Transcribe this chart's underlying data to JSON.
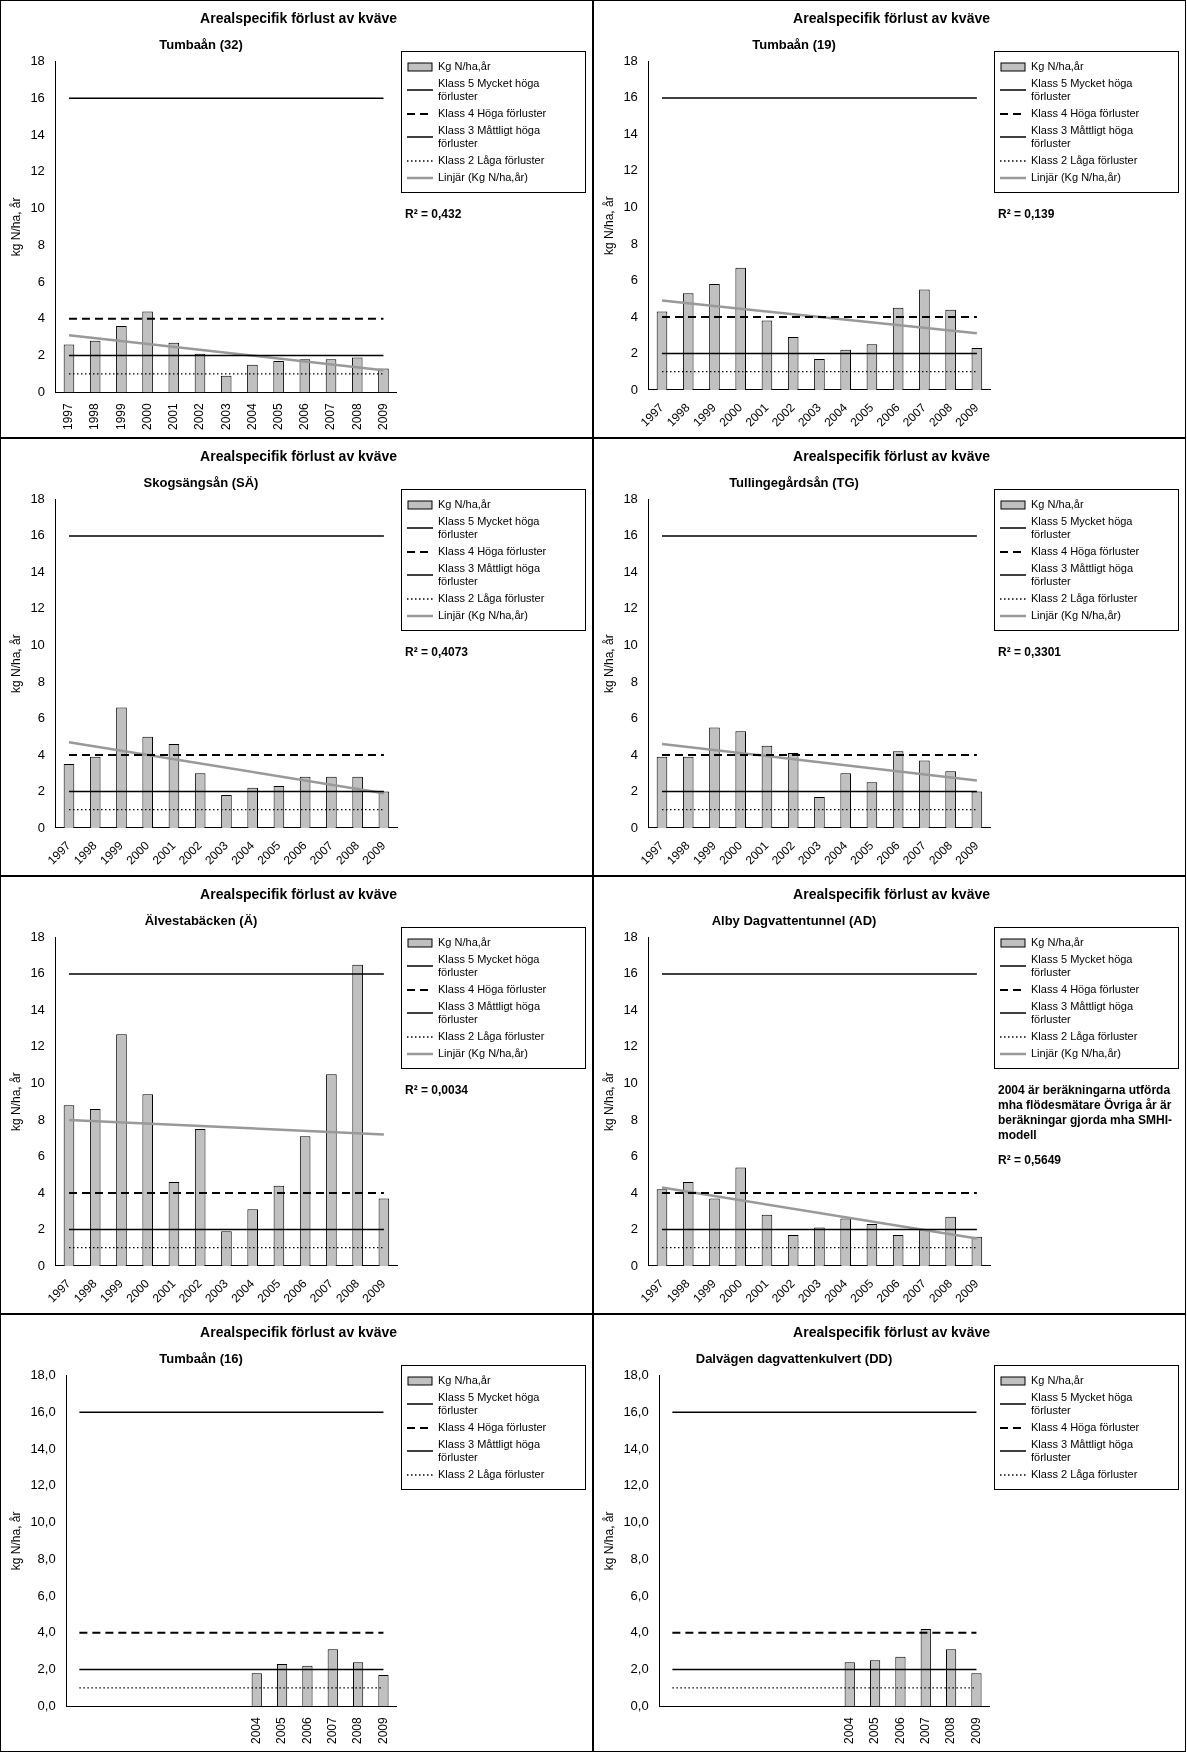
{
  "chart_data": [
    {
      "type": "bar",
      "title": "Arealspecifik förlust av kväve",
      "subtitle": "Tumbaån (32)",
      "ylabel": "kg N/ha, år",
      "categories": [
        "1997",
        "1998",
        "1999",
        "2000",
        "2001",
        "2002",
        "2003",
        "2004",
        "2005",
        "2006",
        "2007",
        "2008",
        "2009"
      ],
      "ylim": [
        0,
        18
      ],
      "yticks": [
        0,
        2,
        4,
        6,
        8,
        10,
        12,
        14,
        16,
        18
      ],
      "legend": "right",
      "marker": "none",
      "annotations": [
        "R² = 0,432"
      ],
      "series": [
        {
          "name": "Kg N/ha,år",
          "color": "#c0c0c0",
          "values": [
            2.6,
            2.8,
            3.6,
            4.4,
            2.7,
            2.1,
            0.9,
            1.5,
            1.7,
            1.8,
            1.8,
            1.9,
            1.3
          ]
        },
        {
          "name": "Klass 5 Mycket höga förluster",
          "type": "line",
          "color": "#000000",
          "line_style": "solid",
          "values": [
            16,
            16,
            16,
            16,
            16,
            16,
            16,
            16,
            16,
            16,
            16,
            16,
            16
          ]
        },
        {
          "name": "Klass 4 Höga förluster",
          "type": "line",
          "color": "#000000",
          "line_style": "dashed",
          "values": [
            4,
            4,
            4,
            4,
            4,
            4,
            4,
            4,
            4,
            4,
            4,
            4,
            4
          ]
        },
        {
          "name": "Klass 3 Måttligt höga förluster",
          "type": "line",
          "color": "#000000",
          "line_style": "solid",
          "values": [
            2,
            2,
            2,
            2,
            2,
            2,
            2,
            2,
            2,
            2,
            2,
            2,
            2
          ]
        },
        {
          "name": "Klass 2 Låga förluster",
          "type": "line",
          "color": "#000000",
          "line_style": "dotted",
          "values": [
            1,
            1,
            1,
            1,
            1,
            1,
            1,
            1,
            1,
            1,
            1,
            1,
            1
          ]
        },
        {
          "name": "Linjär (Kg N/ha,år)",
          "type": "line",
          "color": "#999999",
          "line_style": "solid",
          "values": [
            3.1,
            null,
            null,
            null,
            null,
            null,
            null,
            null,
            null,
            null,
            null,
            null,
            1.2
          ]
        }
      ]
    },
    {
      "type": "bar",
      "title": "Arealspecifik förlust av kväve",
      "subtitle": "Tumbaån (19)",
      "ylabel": "kg N/ha, år",
      "categories": [
        "1997",
        "1998",
        "1999",
        "2000",
        "2001",
        "2002",
        "2003",
        "2004",
        "2005",
        "2006",
        "2007",
        "2008",
        "2009"
      ],
      "ylim": [
        0,
        18
      ],
      "yticks": [
        0,
        2,
        4,
        6,
        8,
        10,
        12,
        14,
        16,
        18
      ],
      "legend": "right",
      "marker": "none",
      "annotations": [
        "R² = 0,139"
      ],
      "series": [
        {
          "name": "Kg N/ha,år",
          "color": "#c0c0c0",
          "values": [
            4.3,
            5.3,
            5.8,
            6.7,
            3.8,
            2.9,
            1.7,
            2.2,
            2.5,
            4.5,
            5.5,
            4.4,
            2.3
          ]
        },
        {
          "name": "Klass 5 Mycket höga förluster",
          "type": "line",
          "color": "#000000",
          "line_style": "solid",
          "values": [
            16,
            16,
            16,
            16,
            16,
            16,
            16,
            16,
            16,
            16,
            16,
            16,
            16
          ]
        },
        {
          "name": "Klass 4 Höga förluster",
          "type": "line",
          "color": "#000000",
          "line_style": "dashed",
          "values": [
            4,
            4,
            4,
            4,
            4,
            4,
            4,
            4,
            4,
            4,
            4,
            4,
            4
          ]
        },
        {
          "name": "Klass 3 Måttligt höga förluster",
          "type": "line",
          "color": "#000000",
          "line_style": "solid",
          "values": [
            2,
            2,
            2,
            2,
            2,
            2,
            2,
            2,
            2,
            2,
            2,
            2,
            2
          ]
        },
        {
          "name": "Klass 2 Låga förluster",
          "type": "line",
          "color": "#000000",
          "line_style": "dotted",
          "values": [
            1,
            1,
            1,
            1,
            1,
            1,
            1,
            1,
            1,
            1,
            1,
            1,
            1
          ]
        },
        {
          "name": "Linjär (Kg N/ha,år)",
          "type": "line",
          "color": "#999999",
          "line_style": "solid",
          "values": [
            4.9,
            null,
            null,
            null,
            null,
            null,
            null,
            null,
            null,
            null,
            null,
            null,
            3.1
          ]
        }
      ]
    },
    {
      "type": "bar",
      "title": "Arealspecifik förlust av kväve",
      "subtitle": "Skogsängsån (SÄ)",
      "ylabel": "kg N/ha, år",
      "categories": [
        "1997",
        "1998",
        "1999",
        "2000",
        "2001",
        "2002",
        "2003",
        "2004",
        "2005",
        "2006",
        "2007",
        "2008",
        "2009"
      ],
      "ylim": [
        0,
        18
      ],
      "yticks": [
        0,
        2,
        4,
        6,
        8,
        10,
        12,
        14,
        16,
        18
      ],
      "legend": "right",
      "marker": "none",
      "annotations": [
        "R² = 0,4073"
      ],
      "series": [
        {
          "name": "Kg N/ha,år",
          "color": "#c0c0c0",
          "values": [
            3.5,
            3.9,
            6.6,
            5.0,
            4.6,
            3.0,
            1.8,
            2.2,
            2.3,
            2.8,
            2.8,
            2.8,
            2.0
          ]
        },
        {
          "name": "Klass 5 Mycket höga förluster",
          "type": "line",
          "color": "#000000",
          "line_style": "solid",
          "values": [
            16,
            16,
            16,
            16,
            16,
            16,
            16,
            16,
            16,
            16,
            16,
            16,
            16
          ]
        },
        {
          "name": "Klass 4 Höga förluster",
          "type": "line",
          "color": "#000000",
          "line_style": "dashed",
          "values": [
            4,
            4,
            4,
            4,
            4,
            4,
            4,
            4,
            4,
            4,
            4,
            4,
            4
          ]
        },
        {
          "name": "Klass 3 Måttligt höga förluster",
          "type": "line",
          "color": "#000000",
          "line_style": "solid",
          "values": [
            2,
            2,
            2,
            2,
            2,
            2,
            2,
            2,
            2,
            2,
            2,
            2,
            2
          ]
        },
        {
          "name": "Klass 2 Låga förluster",
          "type": "line",
          "color": "#000000",
          "line_style": "dotted",
          "values": [
            1,
            1,
            1,
            1,
            1,
            1,
            1,
            1,
            1,
            1,
            1,
            1,
            1
          ]
        },
        {
          "name": "Linjär (Kg N/ha,år)",
          "type": "line",
          "color": "#999999",
          "line_style": "solid",
          "values": [
            4.7,
            null,
            null,
            null,
            null,
            null,
            null,
            null,
            null,
            null,
            null,
            null,
            1.9
          ]
        }
      ]
    },
    {
      "type": "bar",
      "title": "Arealspecifik förlust av kväve",
      "subtitle": "Tullingegårdsån (TG)",
      "ylabel": "kg N/ha, år",
      "categories": [
        "1997",
        "1998",
        "1999",
        "2000",
        "2001",
        "2002",
        "2003",
        "2004",
        "2005",
        "2006",
        "2007",
        "2008",
        "2009"
      ],
      "ylim": [
        0,
        18
      ],
      "yticks": [
        0,
        2,
        4,
        6,
        8,
        10,
        12,
        14,
        16,
        18
      ],
      "legend": "right",
      "marker": "none",
      "annotations": [
        "R² = 0,3301"
      ],
      "series": [
        {
          "name": "Kg N/ha,år",
          "color": "#c0c0c0",
          "values": [
            3.9,
            3.9,
            5.5,
            5.3,
            4.5,
            4.1,
            1.7,
            3.0,
            2.5,
            4.2,
            3.7,
            3.1,
            2.0
          ]
        },
        {
          "name": "Klass 5 Mycket höga förluster",
          "type": "line",
          "color": "#000000",
          "line_style": "solid",
          "values": [
            16,
            16,
            16,
            16,
            16,
            16,
            16,
            16,
            16,
            16,
            16,
            16,
            16
          ]
        },
        {
          "name": "Klass 4 Höga förluster",
          "type": "line",
          "color": "#000000",
          "line_style": "dashed",
          "values": [
            4,
            4,
            4,
            4,
            4,
            4,
            4,
            4,
            4,
            4,
            4,
            4,
            4
          ]
        },
        {
          "name": "Klass 3 Måttligt höga förluster",
          "type": "line",
          "color": "#000000",
          "line_style": "solid",
          "values": [
            2,
            2,
            2,
            2,
            2,
            2,
            2,
            2,
            2,
            2,
            2,
            2,
            2
          ]
        },
        {
          "name": "Klass 2 Låga förluster",
          "type": "line",
          "color": "#000000",
          "line_style": "dotted",
          "values": [
            1,
            1,
            1,
            1,
            1,
            1,
            1,
            1,
            1,
            1,
            1,
            1,
            1
          ]
        },
        {
          "name": "Linjär (Kg N/ha,år)",
          "type": "line",
          "color": "#999999",
          "line_style": "solid",
          "values": [
            4.6,
            null,
            null,
            null,
            null,
            null,
            null,
            null,
            null,
            null,
            null,
            null,
            2.6
          ]
        }
      ]
    },
    {
      "type": "bar",
      "title": "Arealspecifik förlust av kväve",
      "subtitle": "Älvestabäcken (Ä)",
      "ylabel": "kg N/ha, år",
      "categories": [
        "1997",
        "1998",
        "1999",
        "2000",
        "2001",
        "2002",
        "2003",
        "2004",
        "2005",
        "2006",
        "2007",
        "2008",
        "2009"
      ],
      "ylim": [
        0,
        18
      ],
      "yticks": [
        0,
        2,
        4,
        6,
        8,
        10,
        12,
        14,
        16,
        18
      ],
      "legend": "right",
      "marker": "none",
      "annotations": [
        "R² = 0,0034"
      ],
      "series": [
        {
          "name": "Kg N/ha,år",
          "color": "#c0c0c0",
          "values": [
            8.8,
            8.6,
            12.7,
            9.4,
            4.6,
            7.5,
            1.9,
            3.1,
            4.4,
            7.1,
            10.5,
            16.5,
            3.7
          ]
        },
        {
          "name": "Klass 5 Mycket höga förluster",
          "type": "line",
          "color": "#000000",
          "line_style": "solid",
          "values": [
            16,
            16,
            16,
            16,
            16,
            16,
            16,
            16,
            16,
            16,
            16,
            16,
            16
          ]
        },
        {
          "name": "Klass 4 Höga förluster",
          "type": "line",
          "color": "#000000",
          "line_style": "dashed",
          "values": [
            4,
            4,
            4,
            4,
            4,
            4,
            4,
            4,
            4,
            4,
            4,
            4,
            4
          ]
        },
        {
          "name": "Klass 3 Måttligt höga förluster",
          "type": "line",
          "color": "#000000",
          "line_style": "solid",
          "values": [
            2,
            2,
            2,
            2,
            2,
            2,
            2,
            2,
            2,
            2,
            2,
            2,
            2
          ]
        },
        {
          "name": "Klass 2 Låga förluster",
          "type": "line",
          "color": "#000000",
          "line_style": "dotted",
          "values": [
            1,
            1,
            1,
            1,
            1,
            1,
            1,
            1,
            1,
            1,
            1,
            1,
            1
          ]
        },
        {
          "name": "Linjär (Kg N/ha,år)",
          "type": "line",
          "color": "#999999",
          "line_style": "solid",
          "values": [
            8.0,
            null,
            null,
            null,
            null,
            null,
            null,
            null,
            null,
            null,
            null,
            null,
            7.2
          ]
        }
      ]
    },
    {
      "type": "bar",
      "title": "Arealspecifik förlust av kväve",
      "subtitle": "Alby Dagvattentunnel (AD)",
      "ylabel": "kg N/ha, år",
      "categories": [
        "1997",
        "1998",
        "1999",
        "2000",
        "2001",
        "2002",
        "2003",
        "2004",
        "2005",
        "2006",
        "2007",
        "2008",
        "2009"
      ],
      "ylim": [
        0,
        18
      ],
      "yticks": [
        0,
        2,
        4,
        6,
        8,
        10,
        12,
        14,
        16,
        18
      ],
      "legend": "right",
      "marker": "none",
      "annotations": [
        "2004 är beräkningarna utförda mha flödesmätare Övriga år är beräkningar gjorda mha SMHI-modell",
        "R² = 0,5649"
      ],
      "series": [
        {
          "name": "Kg N/ha,år",
          "color": "#c0c0c0",
          "values": [
            4.2,
            4.6,
            3.7,
            5.4,
            2.8,
            1.7,
            2.1,
            2.6,
            2.3,
            1.7,
            2.0,
            2.7,
            1.6
          ]
        },
        {
          "name": "Klass 5 Mycket höga förluster",
          "type": "line",
          "color": "#000000",
          "line_style": "solid",
          "values": [
            16,
            16,
            16,
            16,
            16,
            16,
            16,
            16,
            16,
            16,
            16,
            16,
            16
          ]
        },
        {
          "name": "Klass 4 Höga förluster",
          "type": "line",
          "color": "#000000",
          "line_style": "dashed",
          "values": [
            4,
            4,
            4,
            4,
            4,
            4,
            4,
            4,
            4,
            4,
            4,
            4,
            4
          ]
        },
        {
          "name": "Klass 3 Måttligt höga förluster",
          "type": "line",
          "color": "#000000",
          "line_style": "solid",
          "values": [
            2,
            2,
            2,
            2,
            2,
            2,
            2,
            2,
            2,
            2,
            2,
            2,
            2
          ]
        },
        {
          "name": "Klass 2 Låga förluster",
          "type": "line",
          "color": "#000000",
          "line_style": "dotted",
          "values": [
            1,
            1,
            1,
            1,
            1,
            1,
            1,
            1,
            1,
            1,
            1,
            1,
            1
          ]
        },
        {
          "name": "Linjär (Kg N/ha,år)",
          "type": "line",
          "color": "#999999",
          "line_style": "solid",
          "values": [
            4.3,
            null,
            null,
            null,
            null,
            null,
            null,
            null,
            null,
            null,
            null,
            null,
            1.5
          ]
        }
      ]
    },
    {
      "type": "bar",
      "title": "Arealspecifik förlust av kväve",
      "subtitle": "Tumbaån (16)",
      "ylabel": "kg N/ha, år",
      "categories": [
        null,
        null,
        null,
        null,
        null,
        null,
        null,
        "2004",
        "2005",
        "2006",
        "2007",
        "2008",
        "2009"
      ],
      "ylim": [
        0,
        18
      ],
      "yticks": [
        {
          "value": 0,
          "label": "0,0"
        },
        {
          "value": 2,
          "label": "2,0"
        },
        {
          "value": 4,
          "label": "4,0"
        },
        {
          "value": 6,
          "label": "6,0"
        },
        {
          "value": 8,
          "label": "8,0"
        },
        {
          "value": 10,
          "label": "10,0"
        },
        {
          "value": 12,
          "label": "12,0"
        },
        {
          "value": 14,
          "label": "14,0"
        },
        {
          "value": 16,
          "label": "16,0"
        },
        {
          "value": 18,
          "label": "18,0"
        }
      ],
      "legend": "right",
      "marker": "none",
      "series": [
        {
          "name": "Kg N/ha,år",
          "color": "#c0c0c0",
          "values": [
            null,
            null,
            null,
            null,
            null,
            null,
            null,
            1.8,
            2.3,
            2.2,
            3.1,
            2.4,
            1.7
          ]
        },
        {
          "name": "Klass 5 Mycket höga förluster",
          "type": "line",
          "color": "#000000",
          "line_style": "solid",
          "values": [
            16,
            16,
            16,
            16,
            16,
            16,
            16,
            16,
            16,
            16,
            16,
            16,
            16
          ]
        },
        {
          "name": "Klass 4 Höga förluster",
          "type": "line",
          "color": "#000000",
          "line_style": "dashed",
          "values": [
            4,
            4,
            4,
            4,
            4,
            4,
            4,
            4,
            4,
            4,
            4,
            4,
            4
          ]
        },
        {
          "name": "Klass 3 Måttligt höga förluster",
          "type": "line",
          "color": "#000000",
          "line_style": "solid",
          "values": [
            2,
            2,
            2,
            2,
            2,
            2,
            2,
            2,
            2,
            2,
            2,
            2,
            2
          ]
        },
        {
          "name": "Klass 2 Låga förluster",
          "type": "line",
          "color": "#000000",
          "line_style": "dotted",
          "values": [
            1,
            1,
            1,
            1,
            1,
            1,
            1,
            1,
            1,
            1,
            1,
            1,
            1
          ]
        }
      ]
    },
    {
      "type": "bar",
      "title": "Arealspecifik förlust av kväve",
      "subtitle": "Dalvägen dagvattenkulvert (DD)",
      "ylabel": "kg N/ha, år",
      "categories": [
        null,
        null,
        null,
        null,
        null,
        null,
        null,
        "2004",
        "2005",
        "2006",
        "2007",
        "2008",
        "2009"
      ],
      "ylim": [
        0,
        18
      ],
      "yticks": [
        {
          "value": 0,
          "label": "0,0"
        },
        {
          "value": 2,
          "label": "2,0"
        },
        {
          "value": 4,
          "label": "4,0"
        },
        {
          "value": 6,
          "label": "6,0"
        },
        {
          "value": 8,
          "label": "8,0"
        },
        {
          "value": 10,
          "label": "10,0"
        },
        {
          "value": 12,
          "label": "12,0"
        },
        {
          "value": 14,
          "label": "14,0"
        },
        {
          "value": 16,
          "label": "16,0"
        },
        {
          "value": 18,
          "label": "18,0"
        }
      ],
      "legend": "right",
      "marker": "none",
      "series": [
        {
          "name": "Kg N/ha,år",
          "color": "#c0c0c0",
          "values": [
            null,
            null,
            null,
            null,
            null,
            null,
            null,
            2.4,
            2.5,
            2.7,
            4.2,
            3.1,
            1.8
          ]
        },
        {
          "name": "Klass 5 Mycket höga förluster",
          "type": "line",
          "color": "#000000",
          "line_style": "solid",
          "values": [
            16,
            16,
            16,
            16,
            16,
            16,
            16,
            16,
            16,
            16,
            16,
            16,
            16
          ]
        },
        {
          "name": "Klass 4 Höga förluster",
          "type": "line",
          "color": "#000000",
          "line_style": "dashed",
          "values": [
            4,
            4,
            4,
            4,
            4,
            4,
            4,
            4,
            4,
            4,
            4,
            4,
            4
          ]
        },
        {
          "name": "Klass 3 Måttligt höga förluster",
          "type": "line",
          "color": "#000000",
          "line_style": "solid",
          "values": [
            2,
            2,
            2,
            2,
            2,
            2,
            2,
            2,
            2,
            2,
            2,
            2,
            2
          ]
        },
        {
          "name": "Klass 2 Låga förluster",
          "type": "line",
          "color": "#000000",
          "line_style": "dotted",
          "values": [
            1,
            1,
            1,
            1,
            1,
            1,
            1,
            1,
            1,
            1,
            1,
            1,
            1
          ]
        }
      ]
    }
  ]
}
